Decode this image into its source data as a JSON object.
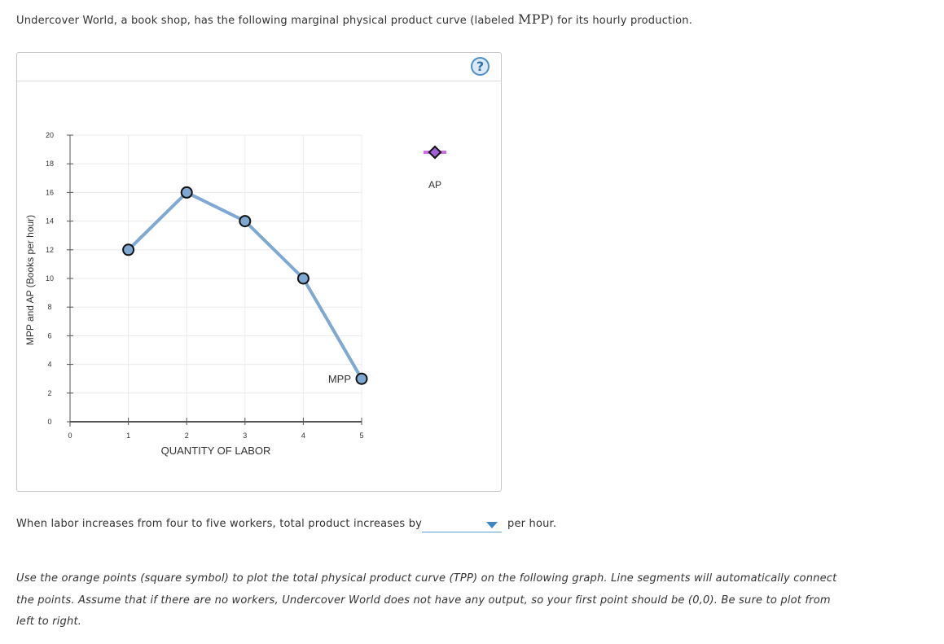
{
  "intro": {
    "text_before": "Undercover World, a book shop, has the following marginal physical product curve (labeled ",
    "mpp": "MPP",
    "text_after": ") for its hourly production."
  },
  "help": {
    "label": "?"
  },
  "question": {
    "text": "When labor increases from four to five workers, total product increases by",
    "selected": "",
    "suffix": "per hour."
  },
  "instructions": "Use the orange points (square symbol) to plot the total physical product curve (TPP) on the following graph. Line segments will automatically connect the points. Assume that if there are no workers, Undercover World does not have any output, so your first point should be (0,0). Be sure to plot from left to right.",
  "colors": {
    "mpp_line": "#7fa8d2",
    "mpp_point": "#7ea7d2",
    "ap_marker": "#a25fd6",
    "ap_line": "#cc6ee0",
    "grid": "#ececec",
    "axis": "#555555"
  },
  "chart_data": {
    "type": "line",
    "xlabel": "QUANTITY OF LABOR",
    "ylabel": "MPP and AP (Books per hour)",
    "xlim": [
      0,
      5
    ],
    "ylim": [
      0,
      20
    ],
    "x_ticks": [
      0,
      1,
      2,
      3,
      4,
      5
    ],
    "y_ticks": [
      0,
      2,
      4,
      6,
      8,
      10,
      12,
      14,
      16,
      18,
      20
    ],
    "series": [
      {
        "name": "MPP",
        "x": [
          1,
          2,
          3,
          4,
          5
        ],
        "y": [
          12,
          16,
          14,
          10,
          3
        ],
        "marker": "circle"
      }
    ],
    "legend": [
      {
        "name": "AP",
        "marker": "diamond",
        "position": "top-right"
      }
    ]
  }
}
